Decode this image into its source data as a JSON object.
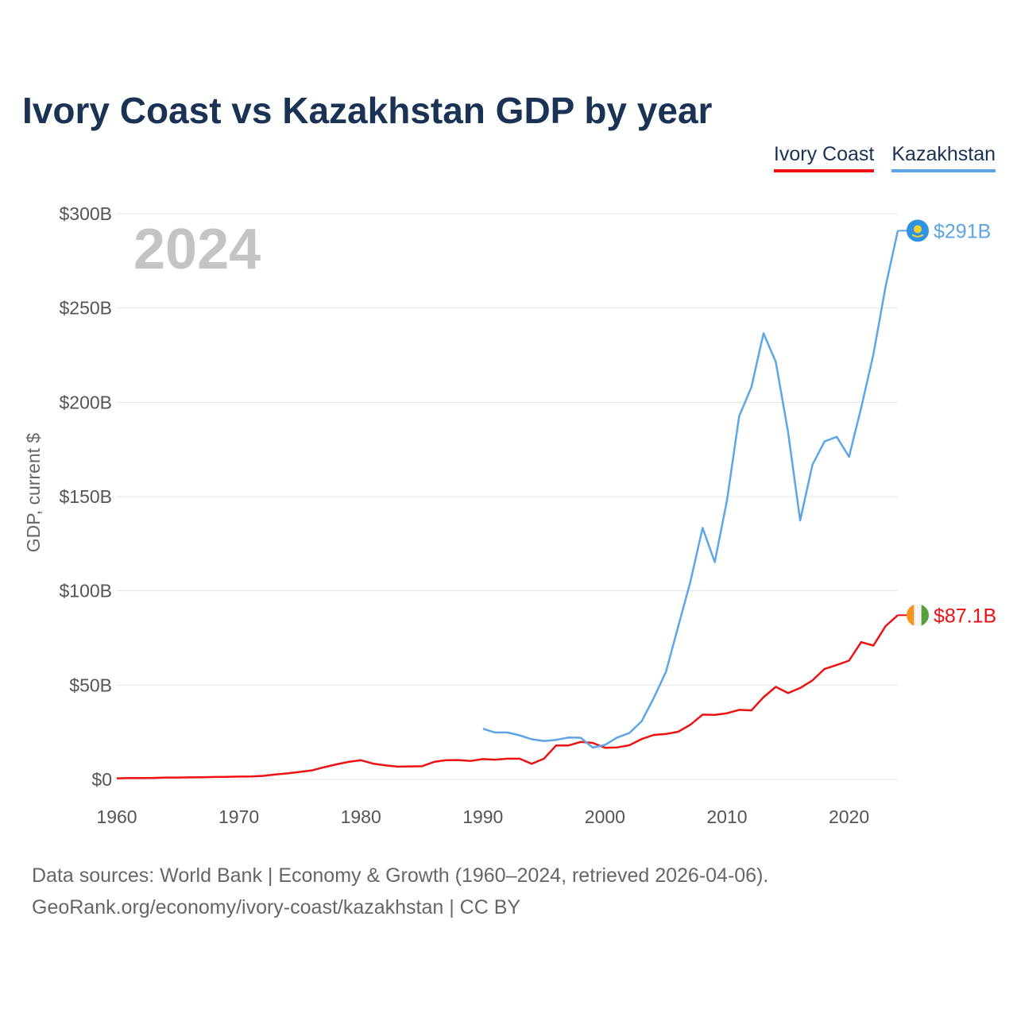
{
  "chart_data": {
    "type": "line",
    "title": "Ivory Coast vs Kazakhstan GDP by year",
    "ylabel": "GDP, current $",
    "xlabel": "",
    "year_label": "2024",
    "ylim": [
      0,
      300
    ],
    "xlim": [
      1960,
      2024
    ],
    "y_ticks": [
      0,
      50,
      100,
      150,
      200,
      250,
      300
    ],
    "y_tick_labels": [
      "$0",
      "$50B",
      "$100B",
      "$150B",
      "$200B",
      "$250B",
      "$300B"
    ],
    "x_ticks": [
      1960,
      1970,
      1980,
      1990,
      2000,
      2010,
      2020
    ],
    "x_tick_labels": [
      "1960",
      "1970",
      "1980",
      "1990",
      "2000",
      "2010",
      "2020"
    ],
    "grid": true,
    "legend_position": "top-right",
    "series": [
      {
        "name": "Ivory Coast",
        "color": "#ee1111",
        "end_label": "$87.1B",
        "flag_colors": [
          "#f7941d",
          "#f4f4f4",
          "#5aa13d"
        ],
        "x": [
          1960,
          1961,
          1962,
          1963,
          1964,
          1965,
          1966,
          1967,
          1968,
          1969,
          1970,
          1971,
          1972,
          1973,
          1974,
          1975,
          1976,
          1977,
          1978,
          1979,
          1980,
          1981,
          1982,
          1983,
          1984,
          1985,
          1986,
          1987,
          1988,
          1989,
          1990,
          1991,
          1992,
          1993,
          1994,
          1995,
          1996,
          1997,
          1998,
          1999,
          2000,
          2001,
          2002,
          2003,
          2004,
          2005,
          2006,
          2007,
          2008,
          2009,
          2010,
          2011,
          2012,
          2013,
          2014,
          2015,
          2016,
          2017,
          2018,
          2019,
          2020,
          2021,
          2022,
          2023,
          2024
        ],
        "values": [
          0.6,
          0.7,
          0.7,
          0.8,
          1.0,
          1.0,
          1.1,
          1.2,
          1.3,
          1.4,
          1.5,
          1.6,
          1.9,
          2.6,
          3.2,
          4.0,
          4.8,
          6.5,
          8.0,
          9.3,
          10.2,
          8.4,
          7.5,
          6.8,
          6.9,
          7.0,
          9.3,
          10.2,
          10.3,
          9.8,
          10.8,
          10.5,
          11.0,
          11.0,
          8.3,
          11.0,
          18.0,
          18.0,
          19.9,
          19.4,
          16.8,
          17.0,
          18.1,
          21.4,
          23.6,
          24.1,
          25.3,
          29.0,
          34.4,
          34.2,
          35.1,
          36.9,
          36.6,
          43.6,
          49.1,
          45.8,
          48.5,
          52.5,
          58.6,
          60.7,
          63.0,
          72.8,
          71.0,
          81.3,
          87.1
        ]
      },
      {
        "name": "Kazakhstan",
        "color": "#5da5e4",
        "end_label": "$291B",
        "flag_colors": [
          "#2f93e3",
          "#f3d02a"
        ],
        "x": [
          1990,
          1991,
          1992,
          1993,
          1994,
          1995,
          1996,
          1997,
          1998,
          1999,
          2000,
          2001,
          2002,
          2003,
          2004,
          2005,
          2006,
          2007,
          2008,
          2009,
          2010,
          2011,
          2012,
          2013,
          2014,
          2015,
          2016,
          2017,
          2018,
          2019,
          2020,
          2021,
          2022,
          2023,
          2024
        ],
        "values": [
          26.9,
          24.9,
          24.9,
          23.4,
          21.3,
          20.4,
          21.0,
          22.2,
          22.1,
          16.9,
          18.3,
          22.2,
          24.6,
          30.8,
          43.2,
          57.1,
          81.0,
          104.8,
          133.4,
          115.3,
          148.0,
          192.6,
          208.0,
          236.6,
          221.4,
          184.4,
          137.3,
          166.8,
          179.3,
          181.7,
          171.1,
          197.1,
          225.5,
          261.4,
          291.0
        ]
      }
    ]
  },
  "footer": {
    "line1": "Data sources: World Bank | Economy & Growth (1960–2024, retrieved 2026-04-06).",
    "line2": "GeoRank.org/economy/ivory-coast/kazakhstan | CC BY"
  }
}
